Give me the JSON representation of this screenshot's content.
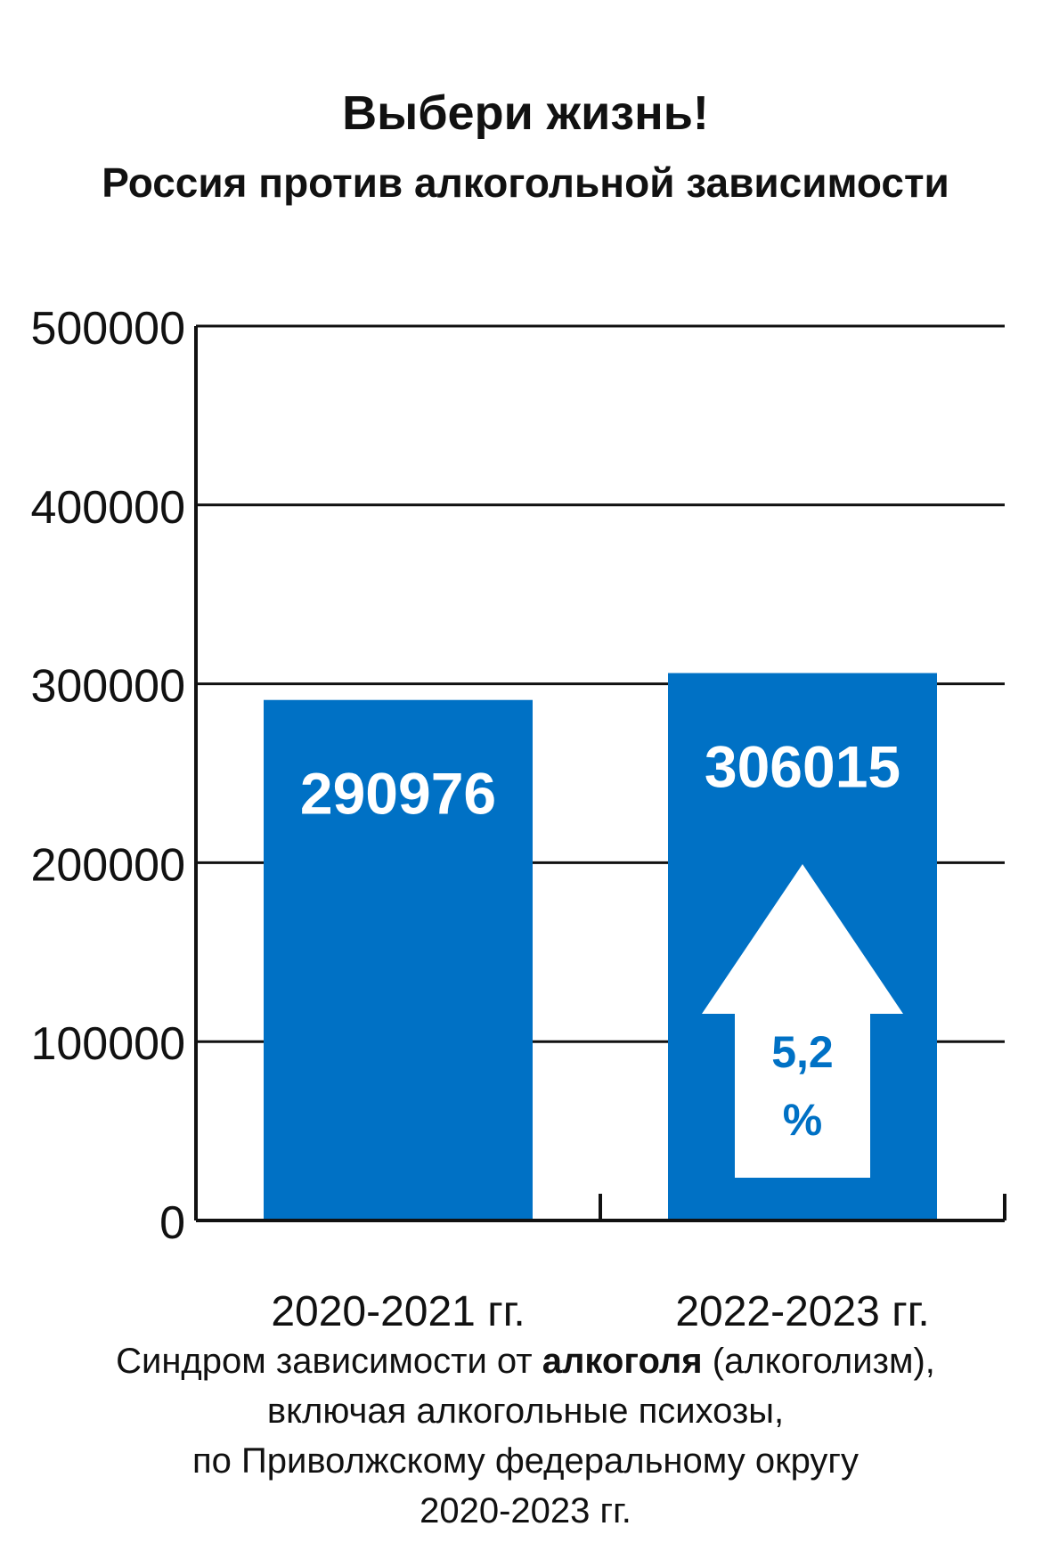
{
  "header": {
    "title": "Выбери жизнь!",
    "subtitle": "Россия против алкогольной зависимости"
  },
  "chart_data": {
    "type": "bar",
    "categories": [
      "2020-2021 гг.",
      "2022-2023 гг."
    ],
    "values": [
      290976,
      306015
    ],
    "value_labels": [
      "290976",
      "306015"
    ],
    "ylim": [
      0,
      500000
    ],
    "yticks": [
      0,
      100000,
      200000,
      300000,
      400000,
      500000
    ],
    "grid": true,
    "bar_color": "#0071c5",
    "change_annotation": {
      "value": "5,2",
      "unit": "%",
      "direction": "up",
      "category": "2022-2023 гг."
    }
  },
  "caption": {
    "line1_pre": "Синдром зависимости  от ",
    "line1_bold": "алкоголя",
    "line1_post": " (алкоголизм),",
    "line2": "включая алкогольные психозы,",
    "line3": "по Приволжскому федеральному округу",
    "line4": "2020-2023 гг."
  },
  "colors": {
    "accent": "#0071c5",
    "text": "#111111",
    "grid": "#111111",
    "background": "#ffffff"
  }
}
